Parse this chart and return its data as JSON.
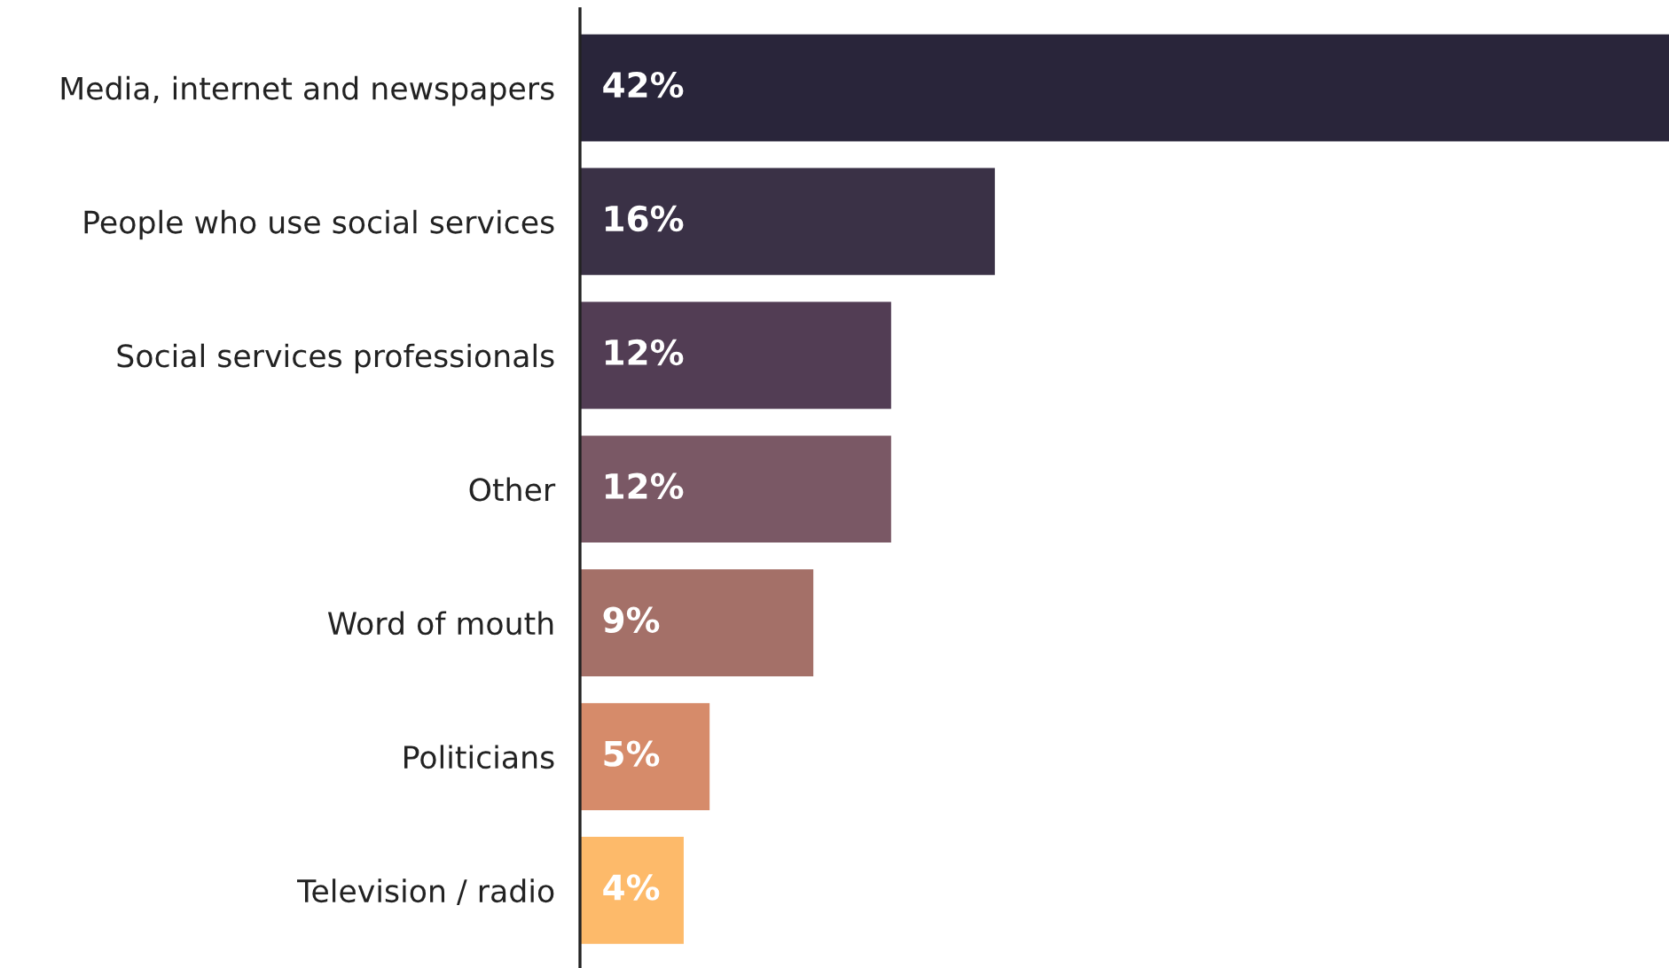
{
  "chart_data": {
    "type": "bar",
    "orientation": "horizontal",
    "categories": [
      "Media, internet and newspapers",
      "People who use social services",
      "Social services professionals",
      "Other",
      "Word of mouth",
      "Politicians",
      "Television / radio"
    ],
    "values": [
      42,
      16,
      12,
      12,
      9,
      5,
      4
    ],
    "value_labels": [
      "42%",
      "16%",
      "12%",
      "12%",
      "9%",
      "5%",
      "4%"
    ],
    "colors": [
      "#29253a",
      "#3a3146",
      "#523d54",
      "#7a5865",
      "#a47068",
      "#d68b6a",
      "#fdba6a"
    ],
    "grid": false,
    "legend": false
  }
}
